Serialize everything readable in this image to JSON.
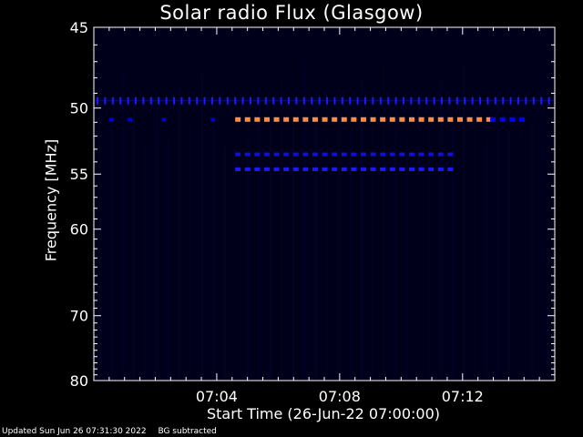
{
  "chart_data": {
    "type": "heatmap",
    "title": "Solar radio Flux (Glasgow)",
    "ylabel": "Frequency [MHz]",
    "xlabel": "Start Time (26-Jun-22 07:00:00)",
    "xlim": [
      0.0,
      15.0
    ],
    "ylim": [
      45,
      80
    ],
    "x_ticks": [
      {
        "value": 4,
        "label": "07:04"
      },
      {
        "value": 8,
        "label": "07:08"
      },
      {
        "value": 12,
        "label": "07:12"
      }
    ],
    "y_ticks": [
      {
        "value": 45,
        "label": "45"
      },
      {
        "value": 50,
        "label": "50"
      },
      {
        "value": 55,
        "label": "55"
      },
      {
        "value": 60,
        "label": "60"
      },
      {
        "value": 70,
        "label": "70"
      },
      {
        "value": 80,
        "label": "80"
      }
    ],
    "background_color": "#00001a",
    "bands": [
      {
        "freq": 49.5,
        "x_start": 0.0,
        "x_end": 15.0,
        "color": "#1a1aff",
        "style": "ticks"
      },
      {
        "freq": 50.8,
        "x_start": 4.6,
        "x_end": 12.9,
        "color": "#ff8c42",
        "style": "dashes"
      },
      {
        "freq": 50.8,
        "x_start": 0.0,
        "x_end": 4.6,
        "color": "#0000cc",
        "style": "sparse"
      },
      {
        "freq": 50.8,
        "x_start": 12.9,
        "x_end": 14.0,
        "color": "#0000ff",
        "style": "dashes"
      },
      {
        "freq": 53.4,
        "x_start": 4.6,
        "x_end": 11.8,
        "color": "#1010d0",
        "style": "dashes"
      },
      {
        "freq": 54.6,
        "x_start": 4.6,
        "x_end": 11.8,
        "color": "#1a1aff",
        "style": "dashes"
      }
    ]
  },
  "footer": {
    "updated": "Updated Sun Jun 26 07:31:30 2022",
    "note": "BG subtracted"
  }
}
